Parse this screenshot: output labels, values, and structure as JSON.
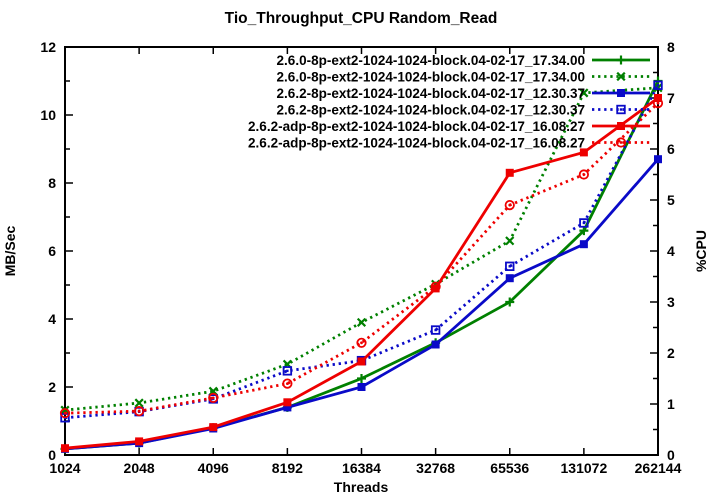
{
  "chart_data": {
    "type": "line",
    "title": "Tio_Throughput_CPU Random_Read",
    "xlabel": "Threads",
    "ylabel": "MB/Sec",
    "y2label": "%CPU",
    "x_categories": [
      "1024",
      "2048",
      "4096",
      "8192",
      "16384",
      "32768",
      "65536",
      "131072",
      "262144"
    ],
    "y_left_axis": {
      "min": 0,
      "max": 12,
      "major_step": 2,
      "minor_step": 1,
      "tick_labels": [
        "0",
        "2",
        "4",
        "6",
        "8",
        "10",
        "12"
      ]
    },
    "y_right_axis": {
      "min": 0,
      "max": 8,
      "major_step": 1,
      "minor_step": 0.5,
      "tick_labels": [
        "0",
        "1",
        "2",
        "3",
        "4",
        "5",
        "6",
        "7",
        "8"
      ]
    },
    "grid": false,
    "legend_position": "top-right-inside",
    "background_color": "#ffffff",
    "border_color": "#000000",
    "colors": {
      "green": "#008000",
      "blue": "#0a0ac8",
      "red": "#ee0000"
    },
    "series": [
      {
        "name": "2.6.0-8p-ext2-1024-1024-block.04-02-17_17.34.00",
        "color": "#008000",
        "line": "solid",
        "marker": "plus",
        "axis": "left",
        "unit": "MB/Sec",
        "values": [
          0.18,
          0.35,
          0.8,
          1.4,
          2.25,
          3.3,
          4.5,
          6.6,
          11.0
        ]
      },
      {
        "name": "2.6.0-8p-ext2-1024-1024-block.04-02-17_17.34.00",
        "color": "#008000",
        "line": "dotted",
        "marker": "cross",
        "axis": "right",
        "unit": "%CPU",
        "values": [
          0.88,
          1.02,
          1.25,
          1.78,
          2.6,
          3.35,
          4.2,
          7.1,
          7.2
        ]
      },
      {
        "name": "2.6.2-8p-ext2-1024-1024-block.04-02-17_12.30.37",
        "color": "#0a0ac8",
        "line": "solid",
        "marker": "square-filled",
        "axis": "left",
        "unit": "MB/Sec",
        "values": [
          0.18,
          0.35,
          0.78,
          1.4,
          2.0,
          3.25,
          5.2,
          6.2,
          8.7
        ]
      },
      {
        "name": "2.6.2-8p-ext2-1024-1024-block.04-02-17_12.30.37",
        "color": "#0a0ac8",
        "line": "dotted",
        "marker": "square-open",
        "axis": "right",
        "unit": "%CPU",
        "values": [
          0.73,
          0.85,
          1.1,
          1.65,
          1.85,
          2.45,
          3.7,
          4.55,
          7.25
        ]
      },
      {
        "name": "2.6.2-adp-8p-ext2-1024-1024-block.04-02-17_16.08.27",
        "color": "#ee0000",
        "line": "solid",
        "marker": "square-filled",
        "axis": "left",
        "unit": "MB/Sec",
        "values": [
          0.2,
          0.4,
          0.82,
          1.55,
          2.75,
          4.9,
          8.3,
          8.9,
          10.5
        ]
      },
      {
        "name": "2.6.2-adp-8p-ext2-1024-1024-block.04-02-17_16.08.27",
        "color": "#ee0000",
        "line": "dotted",
        "marker": "circle-open",
        "axis": "right",
        "unit": "%CPU",
        "values": [
          0.82,
          0.86,
          1.12,
          1.4,
          2.2,
          3.3,
          4.9,
          5.5,
          6.9
        ]
      }
    ]
  }
}
